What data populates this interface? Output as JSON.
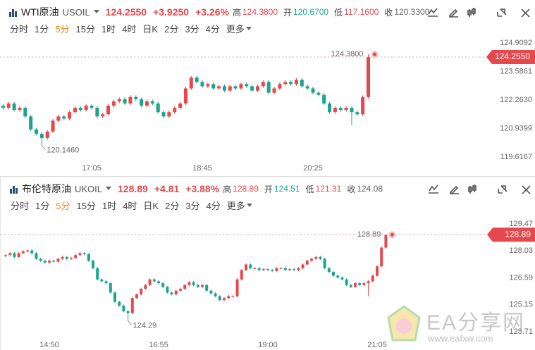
{
  "chart_data": [
    {
      "type": "candlestick",
      "header": {
        "name": "WTI原油",
        "symbol": "USOIL",
        "price": {
          "value": 124.255,
          "label": "124.2550"
        },
        "change": "+3.9250",
        "change_pct": "+3.26%",
        "high_label": "高",
        "high": {
          "value": 124.38,
          "label": "124.3800"
        },
        "open_label": "开",
        "open": "120.6700",
        "low_label": "低",
        "low": "117.1600",
        "close_label": "收",
        "close": "120.3300"
      },
      "periods": [
        "分时",
        "1分",
        "5分",
        "15分",
        "1时",
        "4时",
        "日K",
        "2分",
        "3分",
        "4分",
        "更多"
      ],
      "categories": [
        null,
        null,
        null,
        null,
        null,
        null,
        null,
        null,
        null,
        null,
        null,
        null,
        null,
        null,
        null,
        null,
        "17:05",
        null,
        null,
        null,
        null,
        null,
        null,
        null,
        null,
        null,
        null,
        null,
        null,
        null,
        null,
        null,
        null,
        null,
        null,
        null,
        "18:45",
        null,
        null,
        null,
        null,
        null,
        null,
        null,
        null,
        null,
        null,
        null,
        null,
        null,
        null,
        null,
        null,
        null,
        null,
        null,
        "20:25",
        null,
        null,
        null,
        null,
        null,
        null,
        null,
        null,
        null,
        null
      ],
      "ohlc": [
        [
          122.0,
          122.08,
          121.82,
          121.9
        ],
        [
          121.9,
          122.18,
          121.82,
          122.1
        ],
        [
          122.1,
          122.18,
          121.72,
          121.8
        ],
        [
          121.8,
          121.98,
          121.72,
          121.9
        ],
        [
          121.9,
          121.98,
          121.42,
          121.5
        ],
        [
          121.5,
          121.58,
          120.82,
          120.9
        ],
        [
          120.9,
          120.98,
          120.62,
          120.7
        ],
        [
          120.7,
          120.78,
          120.146,
          120.5
        ],
        [
          120.5,
          120.88,
          120.42,
          120.8
        ],
        [
          120.8,
          121.38,
          120.72,
          121.3
        ],
        [
          121.3,
          121.58,
          121.22,
          121.5
        ],
        [
          121.5,
          121.58,
          121.32,
          121.4
        ],
        [
          121.4,
          121.78,
          121.32,
          121.7
        ],
        [
          121.7,
          121.98,
          121.62,
          121.9
        ],
        [
          121.9,
          121.98,
          121.72,
          121.8
        ],
        [
          121.8,
          122.08,
          121.72,
          122.0
        ],
        [
          122.0,
          122.08,
          121.82,
          121.9
        ],
        [
          121.9,
          121.98,
          121.42,
          121.5
        ],
        [
          121.5,
          121.68,
          121.42,
          121.6
        ],
        [
          121.6,
          122.08,
          121.52,
          122.0
        ],
        [
          122.0,
          122.28,
          121.92,
          122.2
        ],
        [
          122.2,
          122.38,
          122.12,
          122.3
        ],
        [
          122.3,
          122.38,
          122.02,
          122.1
        ],
        [
          122.1,
          122.48,
          122.02,
          122.4
        ],
        [
          122.4,
          122.48,
          122.22,
          122.3
        ],
        [
          122.3,
          122.38,
          121.92,
          122.0
        ],
        [
          122.0,
          122.28,
          121.92,
          122.2
        ],
        [
          122.2,
          122.28,
          122.02,
          122.1
        ],
        [
          122.1,
          122.18,
          121.62,
          121.7
        ],
        [
          121.7,
          121.78,
          121.42,
          121.5
        ],
        [
          121.5,
          121.78,
          121.42,
          121.7
        ],
        [
          121.7,
          121.98,
          121.62,
          121.9
        ],
        [
          121.9,
          122.18,
          121.82,
          122.1
        ],
        [
          122.1,
          122.88,
          122.02,
          122.8
        ],
        [
          122.8,
          123.38,
          122.72,
          123.3
        ],
        [
          123.3,
          123.38,
          123.02,
          123.1
        ],
        [
          123.1,
          123.18,
          122.82,
          122.9
        ],
        [
          122.9,
          123.08,
          122.82,
          123.0
        ],
        [
          123.0,
          123.08,
          122.72,
          122.8
        ],
        [
          122.8,
          122.98,
          122.72,
          122.9
        ],
        [
          122.9,
          122.98,
          122.62,
          122.7
        ],
        [
          122.7,
          122.98,
          122.62,
          122.9
        ],
        [
          122.9,
          122.98,
          122.72,
          122.8
        ],
        [
          122.8,
          123.08,
          122.72,
          123.0
        ],
        [
          123.0,
          123.08,
          122.82,
          122.9
        ],
        [
          122.9,
          122.98,
          122.62,
          122.7
        ],
        [
          122.7,
          122.98,
          122.62,
          122.9
        ],
        [
          122.9,
          123.18,
          122.82,
          123.1
        ],
        [
          123.1,
          123.18,
          122.52,
          122.6
        ],
        [
          122.6,
          122.88,
          122.52,
          122.8
        ],
        [
          122.8,
          123.08,
          122.72,
          123.0
        ],
        [
          123.0,
          123.18,
          122.92,
          123.1
        ],
        [
          123.1,
          123.18,
          122.92,
          123.0
        ],
        [
          123.0,
          123.28,
          122.92,
          123.2
        ],
        [
          123.2,
          123.28,
          122.82,
          122.9
        ],
        [
          122.9,
          122.98,
          122.72,
          122.8
        ],
        [
          122.8,
          122.88,
          122.52,
          122.6
        ],
        [
          122.6,
          122.68,
          122.42,
          122.5
        ],
        [
          122.5,
          122.58,
          122.02,
          122.1
        ],
        [
          122.1,
          122.18,
          121.62,
          121.7
        ],
        [
          121.7,
          121.98,
          121.62,
          121.9
        ],
        [
          121.9,
          121.98,
          121.72,
          121.8
        ],
        [
          121.8,
          121.98,
          121.72,
          121.9
        ],
        [
          121.9,
          121.98,
          121.1,
          121.7
        ],
        [
          121.7,
          121.78,
          121.52,
          121.6
        ],
        [
          121.6,
          122.48,
          121.52,
          122.4
        ],
        [
          122.4,
          124.38,
          122.32,
          124.255
        ]
      ],
      "low_mark": {
        "index": 7,
        "value": 120.146,
        "label": "120.1460"
      },
      "ylim": [
        119.39,
        125.2
      ],
      "yticks": [
        124.9092,
        123.5861,
        {
          "value": 122.263,
          "label": "122.2630"
        },
        120.9399,
        119.6167
      ],
      "up_color": "#e5484d",
      "down_color": "#1aa58c"
    },
    {
      "type": "candlestick",
      "header": {
        "name": "布伦特原油",
        "symbol": "UKOIL",
        "price": {
          "value": 128.89,
          "label": "128.89"
        },
        "change": "+4.81",
        "change_pct": "+3.88%",
        "high_label": "高",
        "high": {
          "value": 128.89,
          "label": "128.89"
        },
        "open_label": "开",
        "open": "124.51",
        "low_label": "低",
        "low": "121.31",
        "close_label": "收",
        "close": "124.08"
      },
      "periods": [
        "分时",
        "1分",
        "5分",
        "15分",
        "1时",
        "4时",
        "日K",
        "2分",
        "3分",
        "4分",
        "更多"
      ],
      "categories": [
        null,
        null,
        null,
        null,
        null,
        null,
        null,
        null,
        null,
        null,
        "14:50",
        null,
        null,
        null,
        null,
        null,
        null,
        null,
        null,
        null,
        null,
        null,
        null,
        null,
        null,
        null,
        null,
        null,
        null,
        null,
        null,
        null,
        null,
        null,
        null,
        "16:55",
        null,
        null,
        null,
        null,
        null,
        null,
        null,
        null,
        null,
        null,
        null,
        null,
        null,
        null,
        null,
        null,
        null,
        null,
        null,
        null,
        null,
        null,
        null,
        null,
        "19:00",
        null,
        null,
        null,
        null,
        null,
        null,
        null,
        null,
        null,
        null,
        null,
        null,
        null,
        null,
        null,
        null,
        null,
        null,
        null,
        null,
        null,
        null,
        null,
        null,
        "21:05",
        null,
        null
      ],
      "ohlc": [
        [
          127.75,
          127.86,
          127.69,
          127.8
        ],
        [
          127.8,
          127.96,
          127.74,
          127.9
        ],
        [
          127.9,
          127.96,
          127.64,
          127.7
        ],
        [
          127.7,
          127.96,
          127.64,
          127.9
        ],
        [
          127.9,
          128.06,
          127.84,
          128.0
        ],
        [
          128.0,
          128.11,
          127.94,
          128.05
        ],
        [
          128.05,
          128.11,
          127.84,
          127.9
        ],
        [
          127.9,
          127.96,
          127.54,
          127.6
        ],
        [
          127.6,
          127.66,
          127.44,
          127.5
        ],
        [
          127.5,
          127.56,
          127.34,
          127.4
        ],
        [
          127.4,
          127.56,
          127.34,
          127.5
        ],
        [
          127.5,
          127.56,
          127.39,
          127.45
        ],
        [
          127.45,
          127.66,
          127.39,
          127.6
        ],
        [
          127.6,
          127.76,
          127.54,
          127.7
        ],
        [
          127.7,
          127.76,
          127.54,
          127.6
        ],
        [
          127.6,
          127.71,
          127.54,
          127.65
        ],
        [
          127.65,
          127.86,
          127.59,
          127.8
        ],
        [
          127.8,
          127.96,
          127.74,
          127.9
        ],
        [
          127.9,
          127.96,
          127.79,
          127.85
        ],
        [
          127.85,
          127.91,
          127.44,
          127.5
        ],
        [
          127.5,
          127.56,
          127.04,
          127.1
        ],
        [
          127.1,
          127.16,
          126.44,
          126.5
        ],
        [
          126.5,
          126.56,
          126.34,
          126.4
        ],
        [
          126.4,
          126.46,
          126.24,
          126.3
        ],
        [
          126.3,
          126.36,
          125.74,
          125.8
        ],
        [
          125.8,
          125.86,
          125.24,
          125.3
        ],
        [
          125.3,
          125.36,
          125.04,
          125.1
        ],
        [
          125.1,
          125.16,
          124.74,
          124.8
        ],
        [
          124.8,
          124.86,
          124.29,
          124.7
        ],
        [
          124.7,
          125.56,
          124.64,
          125.5
        ],
        [
          125.5,
          125.76,
          125.44,
          125.7
        ],
        [
          125.7,
          126.06,
          125.64,
          126.0
        ],
        [
          126.0,
          126.26,
          125.94,
          126.2
        ],
        [
          126.2,
          126.56,
          126.14,
          126.5
        ],
        [
          126.5,
          126.56,
          126.34,
          126.4
        ],
        [
          126.4,
          126.46,
          126.24,
          126.3
        ],
        [
          126.3,
          126.36,
          126.04,
          126.1
        ],
        [
          126.1,
          126.16,
          125.74,
          125.8
        ],
        [
          125.8,
          125.86,
          125.64,
          125.7
        ],
        [
          125.7,
          125.96,
          125.64,
          125.9
        ],
        [
          125.9,
          126.06,
          125.84,
          126.0
        ],
        [
          126.0,
          126.26,
          125.94,
          126.2
        ],
        [
          126.2,
          126.41,
          126.14,
          126.35
        ],
        [
          126.35,
          126.41,
          126.14,
          126.2
        ],
        [
          126.2,
          126.26,
          126.04,
          126.1
        ],
        [
          126.1,
          126.26,
          126.04,
          126.2
        ],
        [
          126.2,
          126.26,
          125.84,
          125.9
        ],
        [
          125.9,
          125.96,
          125.69,
          125.75
        ],
        [
          125.75,
          125.81,
          125.54,
          125.6
        ],
        [
          125.6,
          125.66,
          125.34,
          125.4
        ],
        [
          125.4,
          125.56,
          125.34,
          125.5
        ],
        [
          125.5,
          125.66,
          125.44,
          125.6
        ],
        [
          125.6,
          125.66,
          125.54,
          125.6
        ],
        [
          125.6,
          126.56,
          125.54,
          126.5
        ],
        [
          126.5,
          127.06,
          126.44,
          127.0
        ],
        [
          127.0,
          127.36,
          126.94,
          127.3
        ],
        [
          127.3,
          127.36,
          127.04,
          127.1
        ],
        [
          127.1,
          127.16,
          127.04,
          127.1
        ],
        [
          127.1,
          127.16,
          126.94,
          127.0
        ],
        [
          127.0,
          127.11,
          126.94,
          127.05
        ],
        [
          127.05,
          127.11,
          126.94,
          127.0
        ],
        [
          127.0,
          127.06,
          126.89,
          126.95
        ],
        [
          126.95,
          127.16,
          126.89,
          127.1
        ],
        [
          127.1,
          127.16,
          127.04,
          127.1
        ],
        [
          127.1,
          127.16,
          126.94,
          127.0
        ],
        [
          127.0,
          127.11,
          126.94,
          127.05
        ],
        [
          127.05,
          127.11,
          126.94,
          127.0
        ],
        [
          127.0,
          127.16,
          126.94,
          127.1
        ],
        [
          127.1,
          127.36,
          127.04,
          127.3
        ],
        [
          127.3,
          127.56,
          127.24,
          127.5
        ],
        [
          127.5,
          127.66,
          127.44,
          127.6
        ],
        [
          127.6,
          127.76,
          127.54,
          127.7
        ],
        [
          127.7,
          127.76,
          127.54,
          127.6
        ],
        [
          127.6,
          127.66,
          127.04,
          127.1
        ],
        [
          127.1,
          127.16,
          126.84,
          126.9
        ],
        [
          126.9,
          126.96,
          126.64,
          126.7
        ],
        [
          126.7,
          126.76,
          126.54,
          126.6
        ],
        [
          126.6,
          126.66,
          126.44,
          126.5
        ],
        [
          126.5,
          126.56,
          126.14,
          126.2
        ],
        [
          126.2,
          126.26,
          126.04,
          126.1
        ],
        [
          126.1,
          126.36,
          126.04,
          126.3
        ],
        [
          126.3,
          126.36,
          126.14,
          126.2
        ],
        [
          126.2,
          126.36,
          126.14,
          126.3
        ],
        [
          126.3,
          126.46,
          125.6,
          126.4
        ],
        [
          126.4,
          126.76,
          126.34,
          126.7
        ],
        [
          126.7,
          127.26,
          126.64,
          127.2
        ],
        [
          127.2,
          128.26,
          127.14,
          128.2
        ],
        [
          128.2,
          128.89,
          128.14,
          128.89
        ]
      ],
      "low_mark": {
        "index": 28,
        "value": 124.29,
        "label": "124.29"
      },
      "ylim": [
        123.33,
        130.03
      ],
      "yticks": [
        129.47,
        128.03,
        126.59,
        125.15,
        123.71
      ],
      "up_color": "#e5484d",
      "down_color": "#1aa58c"
    }
  ],
  "watermark": {
    "brand": "EA分享网",
    "url": "www.eafxw.com"
  }
}
